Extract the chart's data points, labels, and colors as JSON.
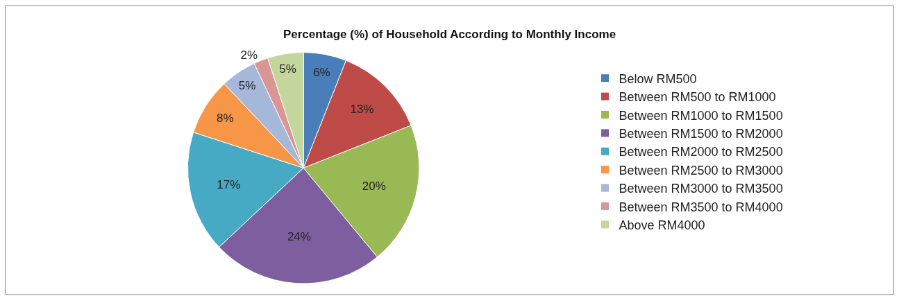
{
  "chart_data": {
    "type": "pie",
    "title": "Percentage (%) of Household According to Monthly Income",
    "categories": [
      "Below RM500",
      "Between RM500 to RM1000",
      "Between RM1000 to RM1500",
      "Between RM1500 to RM2000",
      "Between RM2000 to RM2500",
      "Between RM2500 to RM3000",
      "Between RM3000 to RM3500",
      "Between RM3500 to RM4000",
      "Above RM4000"
    ],
    "values": [
      6,
      13,
      20,
      24,
      17,
      8,
      5,
      2,
      5
    ],
    "value_labels": [
      "6%",
      "13%",
      "20%",
      "24%",
      "17%",
      "8%",
      "5%",
      "2%",
      "5%"
    ],
    "colors": [
      "#4a7ebb",
      "#be4b48",
      "#98b954",
      "#7d5fa0",
      "#46aac5",
      "#f79646",
      "#a5b8d9",
      "#d99694",
      "#c3d69b"
    ],
    "legend": "right"
  }
}
